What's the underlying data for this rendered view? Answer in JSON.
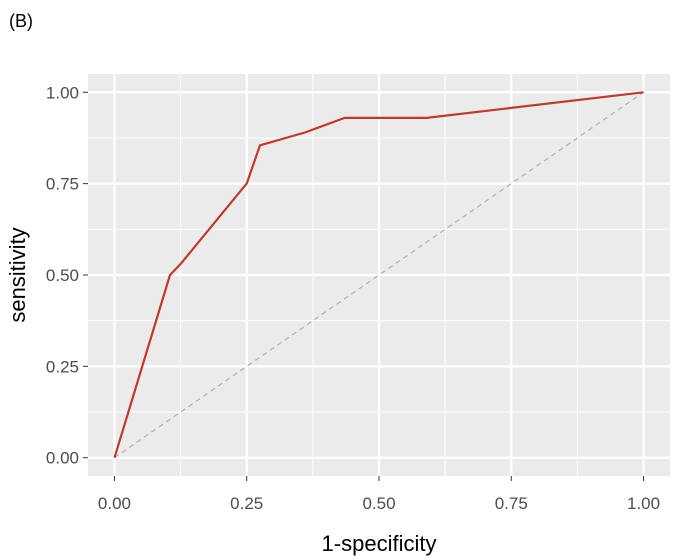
{
  "panel_label": "(B)",
  "chart_data": {
    "type": "line",
    "xlabel": "1-specificity",
    "ylabel": "sensitivity",
    "xlim": [
      -0.05,
      1.05
    ],
    "ylim": [
      -0.05,
      1.05
    ],
    "x_ticks": [
      0.0,
      0.25,
      0.5,
      0.75,
      1.0
    ],
    "y_ticks": [
      0.0,
      0.25,
      0.5,
      0.75,
      1.0
    ],
    "x_tick_labels": [
      "0.00",
      "0.25",
      "0.50",
      "0.75",
      "1.00"
    ],
    "y_tick_labels": [
      "0.00",
      "0.25",
      "0.50",
      "0.75",
      "1.00"
    ],
    "grid": true,
    "background": "#ebebeb",
    "grid_color": "#ffffff",
    "series": [
      {
        "color": "#c0392b",
        "x": [
          0.0,
          0.105,
          0.125,
          0.21,
          0.25,
          0.275,
          0.36,
          0.435,
          0.59,
          1.0
        ],
        "y": [
          0.0,
          0.5,
          0.53,
          0.68,
          0.75,
          0.855,
          0.89,
          0.93,
          0.93,
          1.0
        ]
      }
    ],
    "reference_line": {
      "x": [
        0,
        1
      ],
      "y": [
        0,
        1
      ],
      "color": "#b0b0b0",
      "style": "dashed"
    }
  }
}
